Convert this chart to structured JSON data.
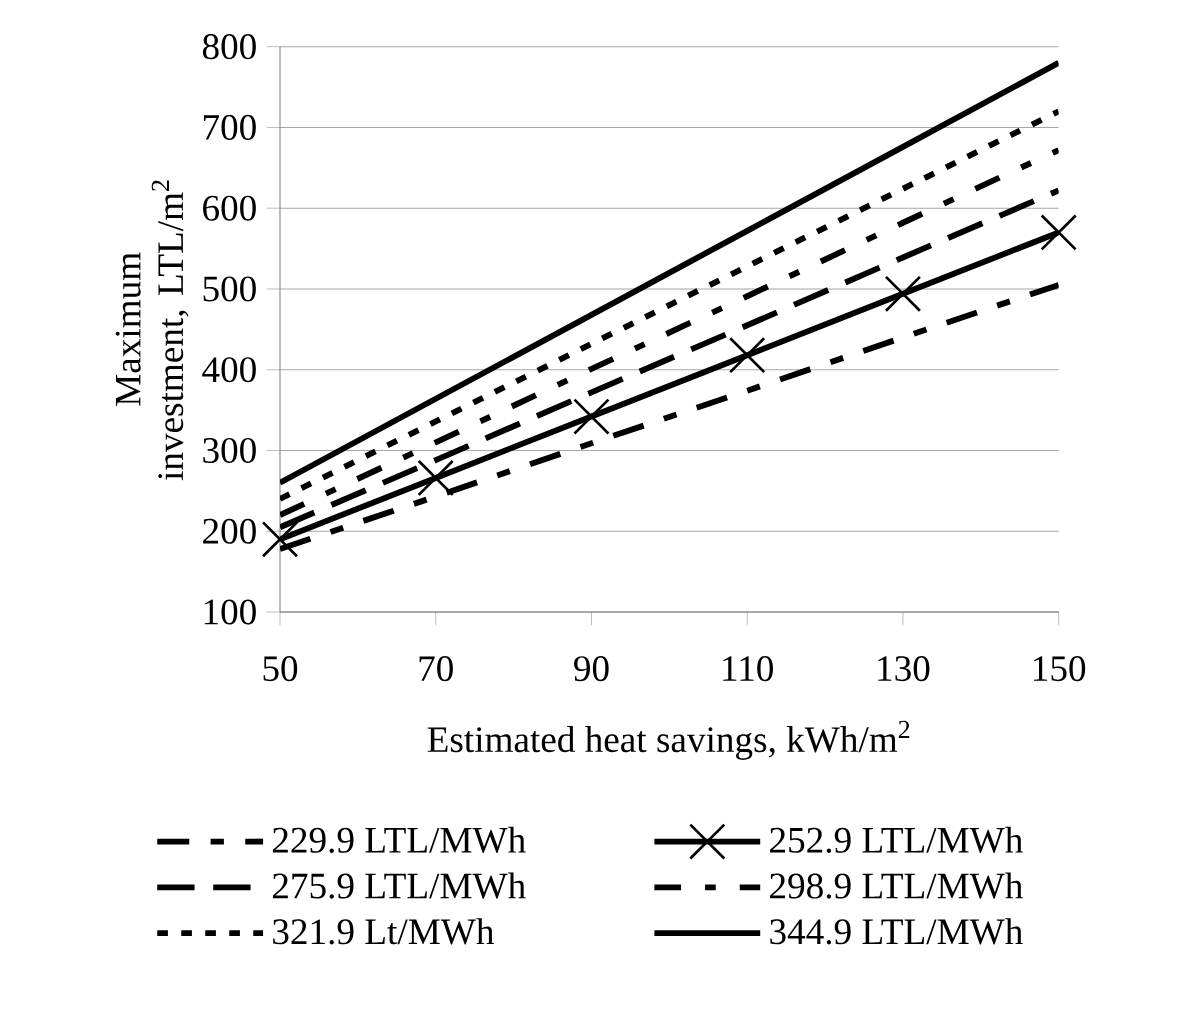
{
  "chart_data": {
    "type": "line",
    "xlabel": "Estimated heat savings, kWh/m$^{2}$",
    "ylabel": "Maximum investment, LTL/m$^{2}$",
    "x": [
      50,
      70,
      90,
      110,
      130,
      150
    ],
    "xlim": [
      50,
      150
    ],
    "xticks": [
      50,
      70,
      90,
      110,
      130,
      150
    ],
    "ylim": [
      100,
      800
    ],
    "yticks": [
      100,
      200,
      300,
      400,
      500,
      600,
      700,
      800
    ],
    "grid": "y",
    "legend": "bottom",
    "series": [
      {
        "name": "229.9 LTL/MWh",
        "color": "#000000",
        "line_style": "dashed",
        "values": [
          178,
          243,
          309,
          374,
          440,
          505
        ]
      },
      {
        "name": "252.9 LTL/MWh",
        "color": "#000000",
        "line_style": "solid",
        "marker": "cross",
        "values": [
          190,
          266,
          342,
          418,
          494,
          570
        ]
      },
      {
        "name": "275.9 LTL/MWh",
        "color": "#000000",
        "line_style": "dashed",
        "values": [
          205,
          288,
          372,
          455,
          539,
          622
        ]
      },
      {
        "name": "298.9 LTL/MWh",
        "color": "#000000",
        "line_style": "dashed",
        "values": [
          220,
          310,
          401,
          491,
          582,
          672
        ]
      },
      {
        "name": "321.9 Lt/MWh",
        "color": "#000000",
        "line_style": "dotted",
        "values": [
          240,
          336,
          432,
          528,
          624,
          720
        ]
      },
      {
        "name": "344.9 LTL/MWh",
        "color": "#000000",
        "line_style": "solid",
        "values": [
          260,
          364,
          468,
          572,
          676,
          780
        ]
      }
    ]
  }
}
